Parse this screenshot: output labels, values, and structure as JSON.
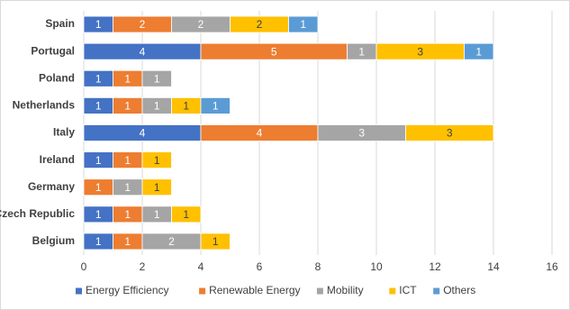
{
  "chart_data": {
    "type": "stacked-barh",
    "categories": [
      "Spain",
      "Portugal",
      "Poland",
      "Netherlands",
      "Italy",
      "Ireland",
      "Germany",
      "Czech Republic",
      "Belgium"
    ],
    "series": [
      {
        "name": "Energy Efficiency",
        "color": "#4472c4",
        "values": [
          1,
          4,
          1,
          1,
          4,
          1,
          null,
          1,
          1
        ]
      },
      {
        "name": "Renewable Energy",
        "color": "#ed7d31",
        "values": [
          2,
          5,
          1,
          1,
          4,
          1,
          1,
          1,
          1
        ]
      },
      {
        "name": "Mobility",
        "color": "#a5a5a5",
        "values": [
          2,
          1,
          1,
          1,
          3,
          null,
          1,
          1,
          2
        ]
      },
      {
        "name": "ICT",
        "color": "#ffc000",
        "values": [
          2,
          3,
          null,
          1,
          3,
          1,
          1,
          1,
          1
        ]
      },
      {
        "name": "Others",
        "color": "#5b9bd5",
        "values": [
          1,
          1,
          null,
          1,
          null,
          null,
          null,
          null,
          null
        ]
      }
    ],
    "xlim": [
      0,
      16
    ],
    "xticks": [
      0,
      2,
      4,
      6,
      8,
      10,
      12,
      14,
      16
    ],
    "grid": true,
    "legend": "bottom"
  }
}
